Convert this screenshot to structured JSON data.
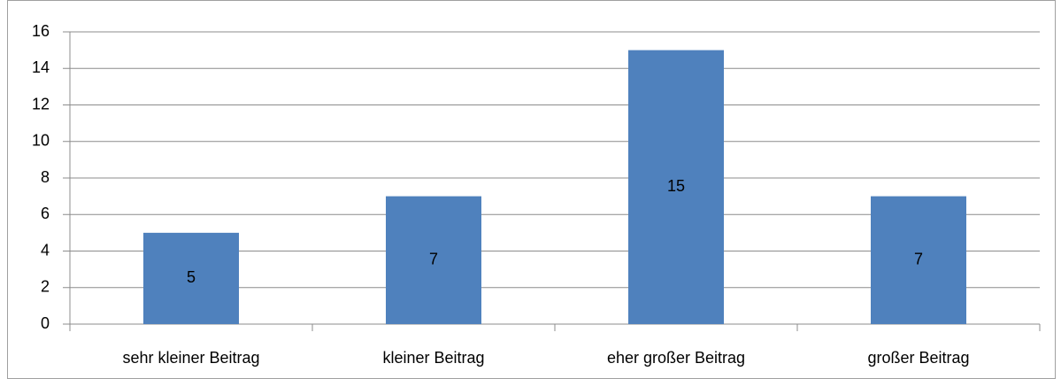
{
  "chart_data": {
    "type": "bar",
    "categories": [
      "sehr kleiner Beitrag",
      "kleiner Beitrag",
      "eher großer Beitrag",
      "großer Beitrag"
    ],
    "values": [
      5,
      7,
      15,
      7
    ],
    "color": "#4f81bd",
    "ylim": [
      0,
      16
    ],
    "yticks": [
      0,
      2,
      4,
      6,
      8,
      10,
      12,
      14,
      16
    ],
    "grid": true,
    "data_labels": true
  }
}
